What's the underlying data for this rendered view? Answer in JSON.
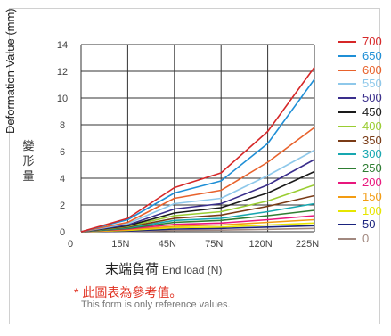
{
  "chart_data": {
    "type": "line",
    "categories": [
      "0",
      "15N",
      "45N",
      "75N",
      "120N",
      "225N"
    ],
    "ylim": [
      0,
      14
    ],
    "yticks": [
      "0",
      "2",
      "4",
      "6",
      "8",
      "10",
      "12",
      "14"
    ],
    "grid": true,
    "legend_position": "right",
    "ylabel": "Deformation Value  (mm)",
    "ylabel_cn": [
      "變",
      "形",
      "量"
    ],
    "xlabel_cn": "末端負荷",
    "xlabel_en": "End load (N)",
    "series": [
      {
        "name": "700",
        "color": "#d62728",
        "values": [
          0,
          1.0,
          3.3,
          4.4,
          7.5,
          12.3
        ]
      },
      {
        "name": "650",
        "color": "#1f8fd6",
        "values": [
          0,
          0.9,
          2.9,
          3.8,
          6.6,
          11.4
        ]
      },
      {
        "name": "600",
        "color": "#e8622c",
        "values": [
          0,
          0.7,
          2.5,
          3.1,
          5.2,
          7.8
        ]
      },
      {
        "name": "550",
        "color": "#8ec8ea",
        "values": [
          0,
          0.6,
          2.1,
          2.5,
          4.2,
          6.1
        ]
      },
      {
        "name": "500",
        "color": "#3a2e8c",
        "values": [
          0,
          0.5,
          1.7,
          2.1,
          3.5,
          5.4
        ]
      },
      {
        "name": "450",
        "color": "#1a1a1a",
        "values": [
          0,
          0.45,
          1.4,
          1.8,
          2.9,
          4.5
        ]
      },
      {
        "name": "400",
        "color": "#9acd32",
        "values": [
          0,
          0.4,
          1.2,
          1.5,
          2.3,
          3.5
        ]
      },
      {
        "name": "350",
        "color": "#7a3b16",
        "values": [
          0,
          0.35,
          1.0,
          1.25,
          1.9,
          2.7
        ]
      },
      {
        "name": "300",
        "color": "#17a7b0",
        "values": [
          0,
          0.3,
          0.85,
          1.0,
          1.5,
          2.1
        ]
      },
      {
        "name": "250",
        "color": "#2e7d32",
        "values": [
          0,
          0.25,
          0.7,
          0.85,
          1.2,
          1.6
        ]
      },
      {
        "name": "200",
        "color": "#e8177d",
        "values": [
          0,
          0.2,
          0.55,
          0.65,
          0.9,
          1.2
        ]
      },
      {
        "name": "150",
        "color": "#f39c12",
        "values": [
          0,
          0.15,
          0.4,
          0.5,
          0.7,
          0.9
        ]
      },
      {
        "name": "100",
        "color": "#e6e600",
        "values": [
          0,
          0.1,
          0.3,
          0.35,
          0.5,
          0.65
        ]
      },
      {
        "name": "50",
        "color": "#1a237e",
        "values": [
          0,
          0.05,
          0.2,
          0.25,
          0.35,
          0.45
        ]
      },
      {
        "name": "0",
        "color": "#a1887f",
        "values": [
          0,
          0.02,
          0.1,
          0.12,
          0.18,
          0.25
        ]
      }
    ]
  },
  "note": {
    "cn": "* 此圖表為參考值。",
    "en": "This form is only reference values."
  }
}
